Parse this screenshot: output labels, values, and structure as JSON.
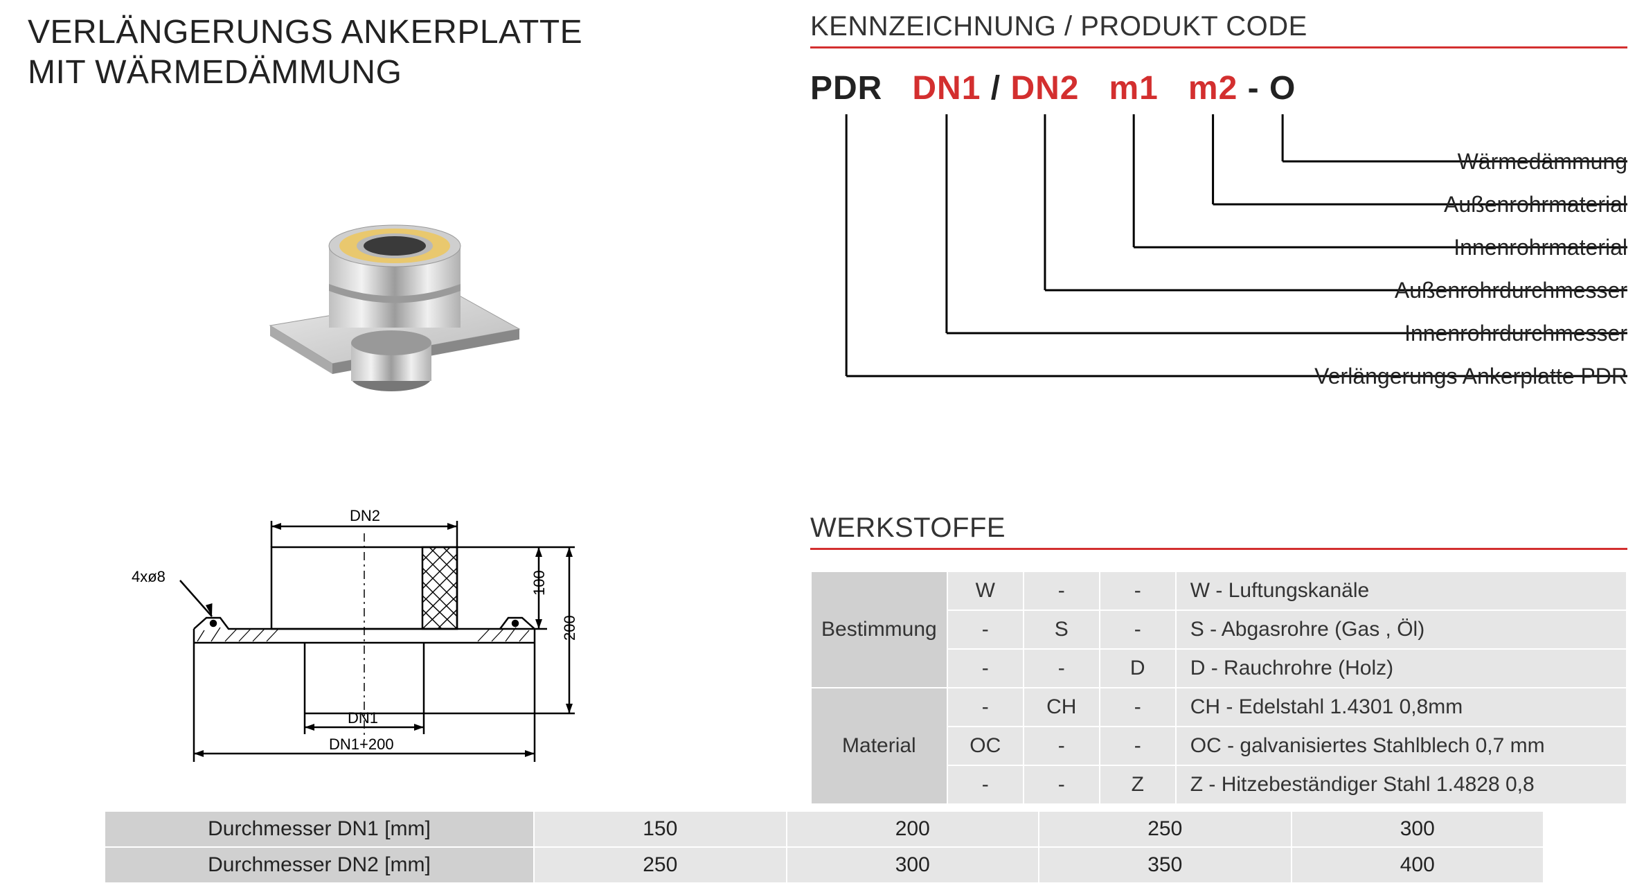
{
  "title_line1": "VERLÄNGERUNGS ANKERPLATTE",
  "title_line2": "MIT WÄRMEDÄMMUNG",
  "code": {
    "header": "KENNZEICHNUNG /  PRODUKT CODE",
    "parts": {
      "p1": "PDR",
      "p2": "DN1",
      "sep1": " / ",
      "p3": "DN2",
      "p4": "m1",
      "p5": "m2",
      "sep2": " - ",
      "p6": "O"
    },
    "labels": [
      "Wärmedämmung",
      "Außenrohrmaterial",
      "Innenrohrmaterial",
      "Außenrohrdurchmesser",
      "Innenrohrdurchmesser",
      "Verlängerungs Ankerplatte PDR"
    ]
  },
  "drawing": {
    "holes": "4xø8",
    "dn2": "DN2",
    "dn1": "DN1",
    "base": "DN1+200",
    "h100": "100",
    "h200": "200"
  },
  "werkstoffe": {
    "header": "WERKSTOFFE",
    "rows": [
      {
        "head": "Bestimmung",
        "cells": [
          [
            "W",
            "-",
            "-",
            "W - Luftungskanäle"
          ],
          [
            "-",
            "S",
            "-",
            "S - Abgasrohre (Gas , Öl)"
          ],
          [
            "-",
            "-",
            "D",
            "D - Rauchrohre (Holz)"
          ]
        ]
      },
      {
        "head": "Material",
        "cells": [
          [
            "-",
            "CH",
            "-",
            "CH - Edelstahl 1.4301 0,8mm"
          ],
          [
            "OC",
            "-",
            "-",
            "OC - galvanisiertes Stahlblech 0,7 mm"
          ],
          [
            "-",
            "-",
            "Z",
            "Z - Hitzebeständiger Stahl 1.4828 0,8"
          ]
        ]
      }
    ],
    "col_widths": [
      "180px",
      "110px",
      "110px",
      "110px",
      "auto"
    ]
  },
  "diameters": {
    "rows": [
      {
        "label": "Durchmesser DN1 [mm]",
        "values": [
          "150",
          "200",
          "250",
          "300"
        ]
      },
      {
        "label": "Durchmesser DN2 [mm]",
        "values": [
          "250",
          "300",
          "350",
          "400"
        ]
      }
    ],
    "label_width": "620px"
  },
  "style": {
    "accent": "#d32f2f",
    "cell_bg": "#e6e6e6",
    "head_bg": "#d0d0d0",
    "line": "#000000"
  }
}
